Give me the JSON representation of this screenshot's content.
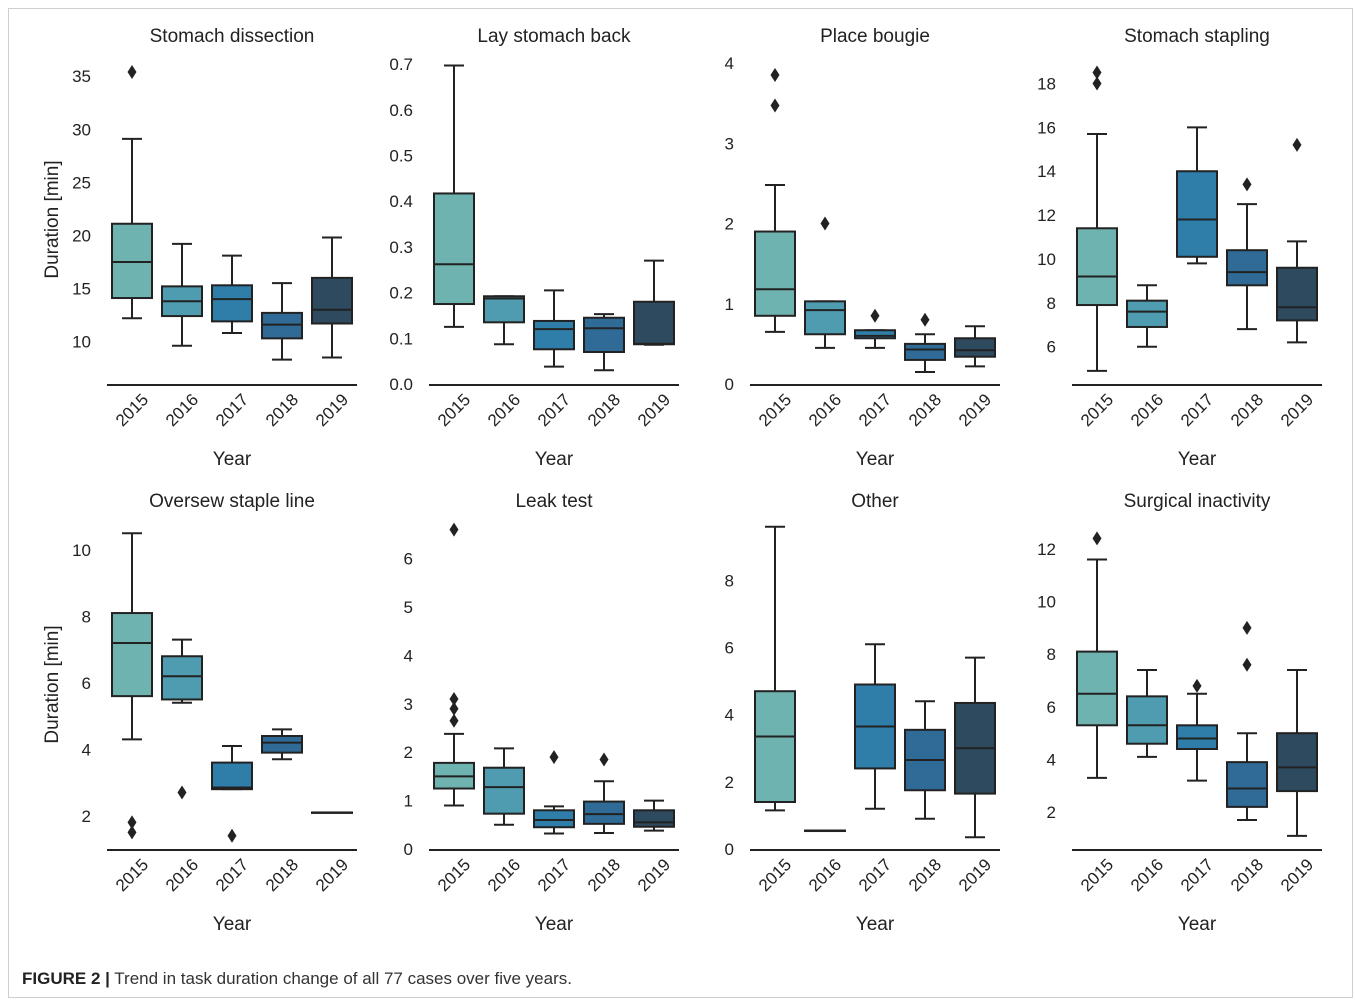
{
  "figure": {
    "caption_label": "FIGURE 2 |",
    "caption_text": " Trend in task duration change of all 77 cases over five years."
  },
  "colors": {
    "years": [
      "#6fb3b0",
      "#4f9bb0",
      "#2f7eaa",
      "#2f6b96",
      "#2e4a5f"
    ],
    "line": "#222222"
  },
  "chart_data": [
    {
      "type": "box",
      "title": "Stomach dissection",
      "xlabel": "Year",
      "ylabel": "Duration [min]",
      "categories": [
        "2015",
        "2016",
        "2017",
        "2018",
        "2019"
      ],
      "ylim": [
        6,
        37
      ],
      "yticks": [
        10,
        15,
        20,
        25,
        30,
        35
      ],
      "boxes": [
        {
          "whislo": 12.2,
          "q1": 14.1,
          "med": 17.5,
          "q3": 21.1,
          "whishi": 29.1,
          "fliers": [
            35.4
          ]
        },
        {
          "whislo": 9.6,
          "q1": 12.4,
          "med": 13.8,
          "q3": 15.2,
          "whishi": 19.2,
          "fliers": []
        },
        {
          "whislo": 10.8,
          "q1": 11.9,
          "med": 14.0,
          "q3": 15.3,
          "whishi": 18.1,
          "fliers": []
        },
        {
          "whislo": 8.3,
          "q1": 10.3,
          "med": 11.6,
          "q3": 12.7,
          "whishi": 15.5,
          "fliers": []
        },
        {
          "whislo": 8.5,
          "q1": 11.7,
          "med": 13.0,
          "q3": 16.0,
          "whishi": 19.8,
          "fliers": []
        }
      ]
    },
    {
      "type": "box",
      "title": "Lay stomach back",
      "xlabel": "Year",
      "ylabel": "",
      "categories": [
        "2015",
        "2016",
        "2017",
        "2018",
        "2019"
      ],
      "ylim": [
        0,
        0.72
      ],
      "yticks": [
        0.0,
        0.1,
        0.2,
        0.3,
        0.4,
        0.5,
        0.6,
        0.7
      ],
      "boxes": [
        {
          "whislo": 0.125,
          "q1": 0.175,
          "med": 0.262,
          "q3": 0.417,
          "whishi": 0.697,
          "fliers": []
        },
        {
          "whislo": 0.087,
          "q1": 0.135,
          "med": 0.187,
          "q3": 0.192,
          "whishi": 0.192,
          "fliers": []
        },
        {
          "whislo": 0.038,
          "q1": 0.076,
          "med": 0.12,
          "q3": 0.138,
          "whishi": 0.205,
          "fliers": []
        },
        {
          "whislo": 0.03,
          "q1": 0.07,
          "med": 0.122,
          "q3": 0.145,
          "whishi": 0.153,
          "fliers": []
        },
        {
          "whislo": 0.086,
          "q1": 0.087,
          "med": 0.088,
          "q3": 0.18,
          "whishi": 0.27,
          "fliers": []
        }
      ]
    },
    {
      "type": "box",
      "title": "Place bougie",
      "xlabel": "Year",
      "ylabel": "",
      "categories": [
        "2015",
        "2016",
        "2017",
        "2018",
        "2019"
      ],
      "ylim": [
        0,
        4.1
      ],
      "yticks": [
        0,
        1,
        2,
        3,
        4
      ],
      "boxes": [
        {
          "whislo": 0.65,
          "q1": 0.85,
          "med": 1.18,
          "q3": 1.9,
          "whishi": 2.48,
          "fliers": [
            3.47,
            3.85
          ]
        },
        {
          "whislo": 0.45,
          "q1": 0.62,
          "med": 0.92,
          "q3": 1.03,
          "whishi": 1.03,
          "fliers": [
            2.0
          ]
        },
        {
          "whislo": 0.45,
          "q1": 0.57,
          "med": 0.6,
          "q3": 0.67,
          "whishi": 0.67,
          "fliers": [
            0.85
          ]
        },
        {
          "whislo": 0.15,
          "q1": 0.3,
          "med": 0.43,
          "q3": 0.5,
          "whishi": 0.62,
          "fliers": [
            0.8
          ]
        },
        {
          "whislo": 0.22,
          "q1": 0.34,
          "med": 0.42,
          "q3": 0.57,
          "whishi": 0.72,
          "fliers": []
        }
      ]
    },
    {
      "type": "box",
      "title": "Stomach stapling",
      "xlabel": "Year",
      "ylabel": "",
      "categories": [
        "2015",
        "2016",
        "2017",
        "2018",
        "2019"
      ],
      "ylim": [
        4.3,
        19.3
      ],
      "yticks": [
        6,
        8,
        10,
        12,
        14,
        16,
        18
      ],
      "boxes": [
        {
          "whislo": 4.9,
          "q1": 7.9,
          "med": 9.2,
          "q3": 11.4,
          "whishi": 15.7,
          "fliers": [
            18.0,
            18.5
          ]
        },
        {
          "whislo": 6.0,
          "q1": 6.9,
          "med": 7.6,
          "q3": 8.1,
          "whishi": 8.8,
          "fliers": []
        },
        {
          "whislo": 9.8,
          "q1": 10.1,
          "med": 11.8,
          "q3": 14.0,
          "whishi": 16.0,
          "fliers": []
        },
        {
          "whislo": 6.8,
          "q1": 8.8,
          "med": 9.4,
          "q3": 10.4,
          "whishi": 12.5,
          "fliers": [
            13.4
          ]
        },
        {
          "whislo": 6.2,
          "q1": 7.2,
          "med": 7.8,
          "q3": 9.6,
          "whishi": 10.8,
          "fliers": [
            15.2
          ]
        }
      ]
    },
    {
      "type": "box",
      "title": "Oversew staple line",
      "xlabel": "Year",
      "ylabel": "Duration [min]",
      "categories": [
        "2015",
        "2016",
        "2017",
        "2018",
        "2019"
      ],
      "ylim": [
        1,
        10.9
      ],
      "yticks": [
        2,
        4,
        6,
        8,
        10
      ],
      "boxes": [
        {
          "whislo": 4.3,
          "q1": 5.6,
          "med": 7.2,
          "q3": 8.1,
          "whishi": 10.5,
          "fliers": [
            1.5,
            1.8
          ]
        },
        {
          "whislo": 5.4,
          "q1": 5.5,
          "med": 6.2,
          "q3": 6.8,
          "whishi": 7.3,
          "fliers": [
            2.7
          ]
        },
        {
          "whislo": 2.8,
          "q1": 2.8,
          "med": 2.85,
          "q3": 3.6,
          "whishi": 4.1,
          "fliers": [
            1.4
          ]
        },
        {
          "whislo": 3.7,
          "q1": 3.9,
          "med": 4.2,
          "q3": 4.4,
          "whishi": 4.6,
          "fliers": []
        },
        {
          "whislo": 2.1,
          "q1": 2.1,
          "med": 2.1,
          "q3": 2.1,
          "whishi": 2.1,
          "fliers": []
        }
      ]
    },
    {
      "type": "box",
      "title": "Leak test",
      "xlabel": "Year",
      "ylabel": "",
      "categories": [
        "2015",
        "2016",
        "2017",
        "2018",
        "2019"
      ],
      "ylim": [
        0,
        6.8
      ],
      "yticks": [
        0,
        1,
        2,
        3,
        4,
        5,
        6
      ],
      "boxes": [
        {
          "whislo": 0.9,
          "q1": 1.25,
          "med": 1.5,
          "q3": 1.78,
          "whishi": 2.38,
          "fliers": [
            2.65,
            2.9,
            3.1,
            6.6
          ]
        },
        {
          "whislo": 0.5,
          "q1": 0.73,
          "med": 1.28,
          "q3": 1.68,
          "whishi": 2.08,
          "fliers": []
        },
        {
          "whislo": 0.32,
          "q1": 0.45,
          "med": 0.6,
          "q3": 0.8,
          "whishi": 0.88,
          "fliers": [
            1.9
          ]
        },
        {
          "whislo": 0.33,
          "q1": 0.52,
          "med": 0.72,
          "q3": 0.98,
          "whishi": 1.4,
          "fliers": [
            1.85
          ]
        },
        {
          "whislo": 0.38,
          "q1": 0.46,
          "med": 0.55,
          "q3": 0.8,
          "whishi": 1.0,
          "fliers": []
        }
      ]
    },
    {
      "type": "box",
      "title": "Other",
      "xlabel": "Year",
      "ylabel": "",
      "categories": [
        "2015",
        "2016",
        "2017",
        "2018",
        "2019"
      ],
      "ylim": [
        0,
        9.8
      ],
      "yticks": [
        0,
        2,
        4,
        6,
        8
      ],
      "boxes": [
        {
          "whislo": 1.15,
          "q1": 1.4,
          "med": 3.35,
          "q3": 4.7,
          "whishi": 9.6,
          "fliers": []
        },
        {
          "whislo": 0.55,
          "q1": 0.55,
          "med": 0.55,
          "q3": 0.55,
          "whishi": 0.55,
          "fliers": []
        },
        {
          "whislo": 1.2,
          "q1": 2.4,
          "med": 3.65,
          "q3": 4.9,
          "whishi": 6.1,
          "fliers": []
        },
        {
          "whislo": 0.9,
          "q1": 1.75,
          "med": 2.65,
          "q3": 3.55,
          "whishi": 4.4,
          "fliers": []
        },
        {
          "whislo": 0.35,
          "q1": 1.65,
          "med": 3.0,
          "q3": 4.35,
          "whishi": 5.7,
          "fliers": []
        }
      ]
    },
    {
      "type": "box",
      "title": "Surgical inactivity",
      "xlabel": "Year",
      "ylabel": "",
      "categories": [
        "2015",
        "2016",
        "2017",
        "2018",
        "2019"
      ],
      "ylim": [
        0.6,
        13.1
      ],
      "yticks": [
        2,
        4,
        6,
        8,
        10,
        12
      ],
      "boxes": [
        {
          "whislo": 3.3,
          "q1": 5.3,
          "med": 6.5,
          "q3": 8.1,
          "whishi": 11.6,
          "fliers": [
            12.4
          ]
        },
        {
          "whislo": 4.1,
          "q1": 4.6,
          "med": 5.3,
          "q3": 6.4,
          "whishi": 7.4,
          "fliers": []
        },
        {
          "whislo": 3.2,
          "q1": 4.4,
          "med": 4.8,
          "q3": 5.3,
          "whishi": 6.5,
          "fliers": [
            6.8
          ]
        },
        {
          "whislo": 1.7,
          "q1": 2.2,
          "med": 2.9,
          "q3": 3.9,
          "whishi": 5.0,
          "fliers": [
            7.6,
            9.0
          ]
        },
        {
          "whislo": 1.1,
          "q1": 2.8,
          "med": 3.7,
          "q3": 5.0,
          "whishi": 7.4,
          "fliers": []
        }
      ]
    }
  ]
}
